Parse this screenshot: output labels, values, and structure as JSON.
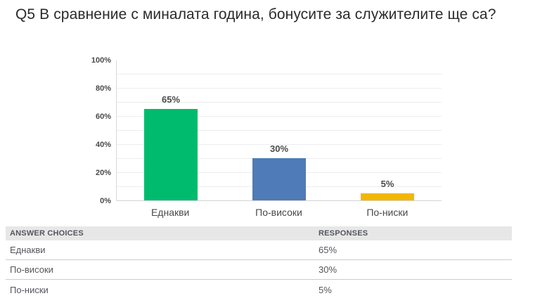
{
  "title": "Q5 В сравнение с миналата година, бонусите за служителите ще са?",
  "chart_data": {
    "type": "bar",
    "title": "",
    "categories": [
      "Еднакви",
      "По-високи",
      "По-ниски"
    ],
    "values": [
      65,
      30,
      5
    ],
    "value_labels": [
      "65%",
      "30%",
      "5%"
    ],
    "bar_colors": [
      "#00BB6E",
      "#4F7BB8",
      "#F2B705"
    ],
    "ytick_labels": [
      "100%",
      "80%",
      "60%",
      "40%",
      "20%",
      "0%"
    ],
    "ylim": [
      0,
      100
    ],
    "grid": "horizontal lines every 10%",
    "legend": "none",
    "xlabel": "",
    "ylabel": ""
  },
  "table": {
    "headers": {
      "choices": "ANSWER CHOICES",
      "responses": "RESPONSES"
    },
    "rows": [
      {
        "choice": "Еднакви",
        "response": "65%"
      },
      {
        "choice": "По-високи",
        "response": "30%"
      },
      {
        "choice": "По-ниски",
        "response": "5%"
      }
    ]
  },
  "colors": {
    "bar_green": "#00BB6E",
    "bar_blue": "#4F7BB8",
    "bar_yellow": "#F2B705",
    "table_header_bg": "#E7E7E8",
    "grid_line": "#EDEDED",
    "axis_line": "#D9D9D9",
    "title_text": "#2B2B2B",
    "table_text": "#54565B",
    "axis_text": "#494949"
  }
}
